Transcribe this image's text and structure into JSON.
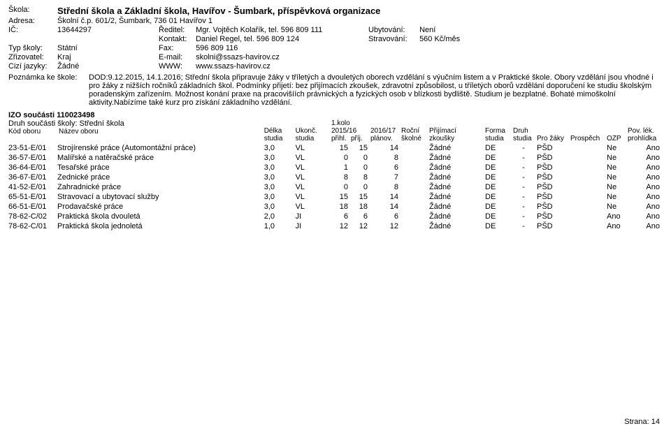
{
  "header": {
    "skola_label": "Škola:",
    "skola_value": "Střední škola a Základní škola, Havířov - Šumbark, příspěvková organizace",
    "adresa_label": "Adresa:",
    "adresa_value": "Školní č.p. 601/2, Šumbark, 736 01 Havířov 1",
    "ic_label": "IČ:",
    "ic_value": "13644297",
    "typ_label": "Typ školy:",
    "typ_value": "Státní",
    "zriz_label": "Zřizovatel:",
    "zriz_value": "Kraj",
    "cizi_label": "Cizí jazyky:",
    "cizi_value": "Žádné",
    "reditel_label": "Ředitel:",
    "reditel_value": "Mgr. Vojtěch Kolařík, tel. 596 809 111",
    "kontakt_label": "Kontakt:",
    "kontakt_value": "Daniel Regel, tel. 596 809 124",
    "fax_label": "Fax:",
    "fax_value": "596 809 116",
    "email_label": "E-mail:",
    "email_value": "skolni@ssazs-havirov.cz",
    "www_label": "WWW:",
    "www_value": "www.ssazs-havirov.cz",
    "ubyt_label": "Ubytování:",
    "ubyt_value": "Není",
    "strav_label": "Stravování:",
    "strav_value": "560 Kč/měs"
  },
  "note": {
    "label": "Poznámka ke škole:",
    "text": "DOD:9.12.2015, 14.1.2016; Střední škola připravuje žáky v tříletých a dvouletých oborech vzdělání s výučním listem a v Praktické škole. Obory vzdělání jsou vhodné i pro žáky z nižších ročníků základních škol. Podmínky přijetí: bez přijímacích zkoušek, zdravotní způsobilost, u tříletých oborů vzdělání doporučení ke studiu školským poradenským zařízením. Možnost konání praxe na pracovišíích právnických a fyzických osob v blízkosti bydliště. Studium je bezplatné. Bohaté mimoškolní aktivity.Nabízíme také kurz pro získání základního vzdělání."
  },
  "section": {
    "izo": "IZO součásti 110023498",
    "druh_label": "Druh součásti školy:",
    "druh_value": "Střední škola"
  },
  "cols": {
    "kod1": "Kód oboru",
    "kod2": "",
    "nazev1": "Název oboru",
    "nazev2": "",
    "delka1": "Délka",
    "delka2": "studia",
    "ukonc1": "Ukonč.",
    "ukonc2": "studia",
    "k11": "1.kolo 2015/16",
    "k1a": "přihl.",
    "k1b": "příj.",
    "k21": "2016/17",
    "k22": "plánov.",
    "rocni1": "Roční",
    "rocni2": "školné",
    "prij1": "Přijímací",
    "prij2": "zkoušky",
    "forma1": "Forma",
    "forma2": "studia",
    "druh1": "Druh",
    "druh2": "studia",
    "pro1": "Pro žáky",
    "pro2": "",
    "pros1": "Prospěch",
    "pros2": "",
    "ozp1": "OZP",
    "ozp2": "",
    "pov1": "Pov. lék.",
    "pov2": "prohlídka"
  },
  "rows": [
    {
      "kod": "23-51-E/01",
      "nazev": "Strojírenské práce (Automontážní práce)",
      "delka": "3,0",
      "ukonc": "VL",
      "prihl": "15",
      "prij": "15",
      "plan": "14",
      "skolne": "",
      "zkousky": "Žádné",
      "forma": "DE",
      "druh": "-",
      "pro": "PŠD",
      "prospech": "",
      "ozp": "Ne",
      "pov": "Ano"
    },
    {
      "kod": "36-57-E/01",
      "nazev": "Malířské a natěračské práce",
      "delka": "3,0",
      "ukonc": "VL",
      "prihl": "0",
      "prij": "0",
      "plan": "8",
      "skolne": "",
      "zkousky": "Žádné",
      "forma": "DE",
      "druh": "-",
      "pro": "PŠD",
      "prospech": "",
      "ozp": "Ne",
      "pov": "Ano"
    },
    {
      "kod": "36-64-E/01",
      "nazev": "Tesařské práce",
      "delka": "3,0",
      "ukonc": "VL",
      "prihl": "1",
      "prij": "0",
      "plan": "6",
      "skolne": "",
      "zkousky": "Žádné",
      "forma": "DE",
      "druh": "-",
      "pro": "PŠD",
      "prospech": "",
      "ozp": "Ne",
      "pov": "Ano"
    },
    {
      "kod": "36-67-E/01",
      "nazev": "Zednické práce",
      "delka": "3,0",
      "ukonc": "VL",
      "prihl": "8",
      "prij": "8",
      "plan": "7",
      "skolne": "",
      "zkousky": "Žádné",
      "forma": "DE",
      "druh": "-",
      "pro": "PŠD",
      "prospech": "",
      "ozp": "Ne",
      "pov": "Ano"
    },
    {
      "kod": "41-52-E/01",
      "nazev": "Zahradnické práce",
      "delka": "3,0",
      "ukonc": "VL",
      "prihl": "0",
      "prij": "0",
      "plan": "8",
      "skolne": "",
      "zkousky": "Žádné",
      "forma": "DE",
      "druh": "-",
      "pro": "PŠD",
      "prospech": "",
      "ozp": "Ne",
      "pov": "Ano"
    },
    {
      "kod": "65-51-E/01",
      "nazev": "Stravovací a ubytovací služby",
      "delka": "3,0",
      "ukonc": "VL",
      "prihl": "15",
      "prij": "15",
      "plan": "14",
      "skolne": "",
      "zkousky": "Žádné",
      "forma": "DE",
      "druh": "-",
      "pro": "PŠD",
      "prospech": "",
      "ozp": "Ne",
      "pov": "Ano"
    },
    {
      "kod": "66-51-E/01",
      "nazev": "Prodavačské práce",
      "delka": "3,0",
      "ukonc": "VL",
      "prihl": "18",
      "prij": "18",
      "plan": "14",
      "skolne": "",
      "zkousky": "Žádné",
      "forma": "DE",
      "druh": "-",
      "pro": "PŠD",
      "prospech": "",
      "ozp": "Ne",
      "pov": "Ano"
    },
    {
      "kod": "78-62-C/02",
      "nazev": "Praktická škola dvouletá",
      "delka": "2,0",
      "ukonc": "JI",
      "prihl": "6",
      "prij": "6",
      "plan": "6",
      "skolne": "",
      "zkousky": "Žádné",
      "forma": "DE",
      "druh": "-",
      "pro": "PŠD",
      "prospech": "",
      "ozp": "Ano",
      "pov": "Ano"
    },
    {
      "kod": "78-62-C/01",
      "nazev": "Praktická škola jednoletá",
      "delka": "1,0",
      "ukonc": "JI",
      "prihl": "12",
      "prij": "12",
      "plan": "12",
      "skolne": "",
      "zkousky": "Žádné",
      "forma": "DE",
      "druh": "-",
      "pro": "PŠD",
      "prospech": "",
      "ozp": "Ano",
      "pov": "Ano"
    }
  ],
  "footer": "Strana: 14",
  "style": {
    "font_body": 11,
    "font_title": 13,
    "color_text": "#000000",
    "background": "#ffffff"
  }
}
